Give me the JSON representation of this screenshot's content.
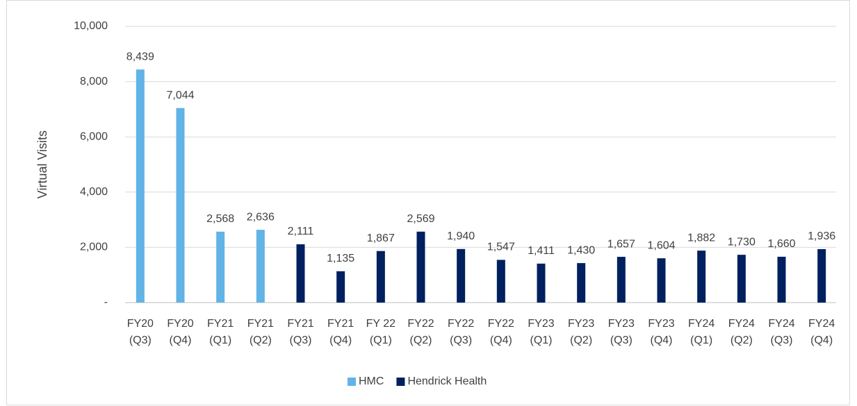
{
  "chart_data": {
    "type": "bar",
    "y_label": "Virtual Visits",
    "categories": [
      [
        "FY20",
        "(Q3)"
      ],
      [
        "FY20",
        "(Q4)"
      ],
      [
        "FY21",
        "(Q1)"
      ],
      [
        "FY21",
        "(Q2)"
      ],
      [
        "FY21",
        "(Q3)"
      ],
      [
        "FY21",
        "(Q4)"
      ],
      [
        "FY 22",
        "(Q1)"
      ],
      [
        "FY22",
        "(Q2)"
      ],
      [
        "FY22",
        "(Q3)"
      ],
      [
        "FY22",
        "(Q4)"
      ],
      [
        "FY23",
        "(Q1)"
      ],
      [
        "FY23",
        "(Q2)"
      ],
      [
        "FY23",
        "(Q3)"
      ],
      [
        "FY23",
        "(Q4)"
      ],
      [
        "FY24",
        "(Q1)"
      ],
      [
        "FY24",
        "(Q2)"
      ],
      [
        "FY24",
        "(Q3)"
      ],
      [
        "FY24",
        "(Q4)"
      ]
    ],
    "series": [
      {
        "name": "HMC",
        "color": "#62b3e6",
        "values": [
          8439,
          7044,
          2568,
          2636,
          null,
          null,
          null,
          null,
          null,
          null,
          null,
          null,
          null,
          null,
          null,
          null,
          null,
          null
        ],
        "value_labels": [
          "8,439",
          "7,044",
          "2,568",
          "2,636",
          null,
          null,
          null,
          null,
          null,
          null,
          null,
          null,
          null,
          null,
          null,
          null,
          null,
          null
        ]
      },
      {
        "name": "Hendrick Health",
        "color": "#002060",
        "values": [
          null,
          null,
          null,
          null,
          2111,
          1135,
          1867,
          2569,
          1940,
          1547,
          1411,
          1430,
          1657,
          1604,
          1882,
          1730,
          1660,
          1936
        ],
        "value_labels": [
          null,
          null,
          null,
          null,
          "2,111",
          "1,135",
          "1,867",
          "2,569",
          "1,940",
          "1,547",
          "1,411",
          "1,430",
          "1,657",
          "1,604",
          "1,882",
          "1,730",
          "1,660",
          "1,936"
        ]
      }
    ],
    "ylim": [
      0,
      10000
    ],
    "yticks": [
      {
        "value": 0,
        "label": "-"
      },
      {
        "value": 2000,
        "label": "2,000"
      },
      {
        "value": 4000,
        "label": "4,000"
      },
      {
        "value": 6000,
        "label": "6,000"
      },
      {
        "value": 8000,
        "label": "8,000"
      },
      {
        "value": 10000,
        "label": "10,000"
      }
    ],
    "grid": true,
    "legend": "bottom"
  }
}
